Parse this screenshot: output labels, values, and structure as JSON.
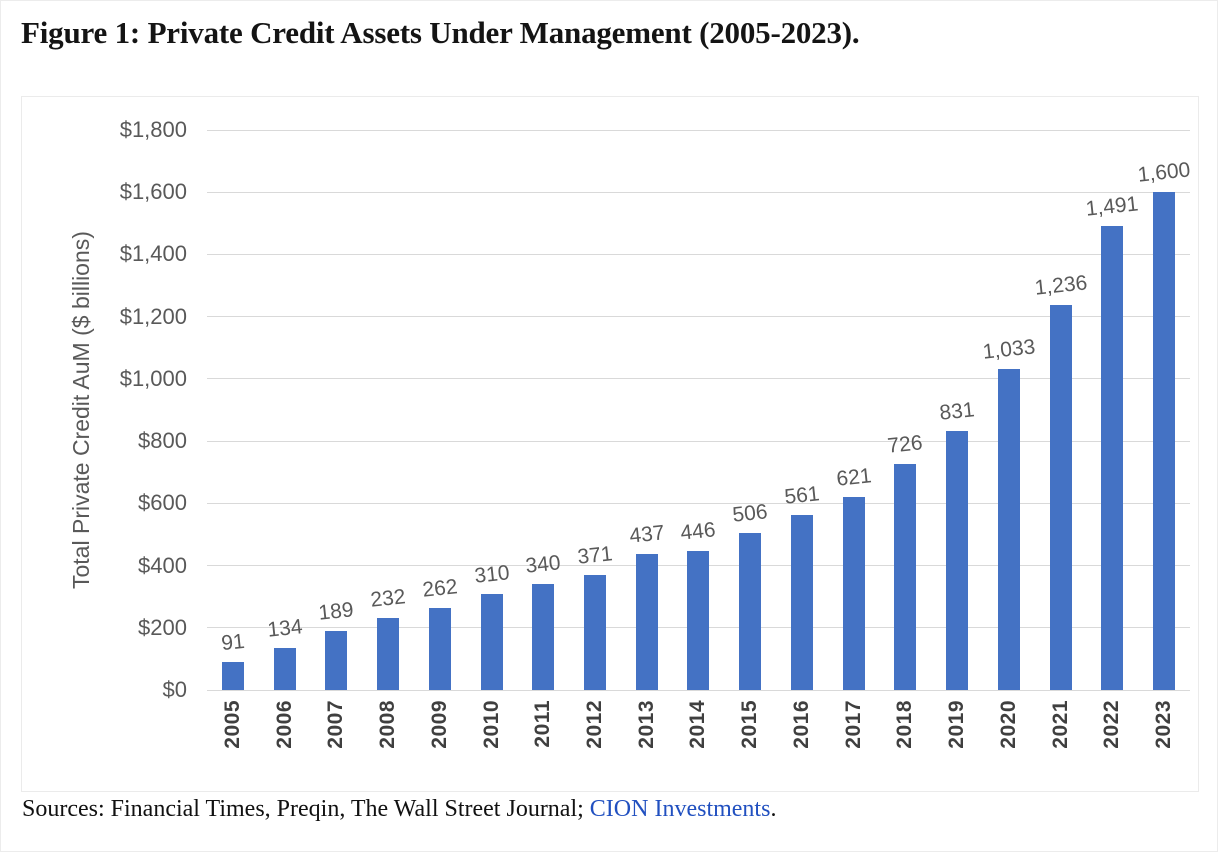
{
  "page": {
    "title": "Figure 1: Private Credit Assets Under Management (2005-2023).",
    "source": {
      "prefix": "Sources: Financial Times, Preqin, The Wall Street Journal; ",
      "link_text": "CION Investments",
      "suffix": "."
    }
  },
  "chart_data": {
    "type": "bar",
    "title": "Figure 1: Private Credit Assets Under Management (2005-2023).",
    "categories": [
      "2005",
      "2006",
      "2007",
      "2008",
      "2009",
      "2010",
      "2011",
      "2012",
      "2013",
      "2014",
      "2015",
      "2016",
      "2017",
      "2018",
      "2019",
      "2020",
      "2021",
      "2022",
      "2023"
    ],
    "values": [
      91,
      134,
      189,
      232,
      262,
      310,
      340,
      371,
      437,
      446,
      506,
      561,
      621,
      726,
      831,
      1033,
      1236,
      1491,
      1600
    ],
    "value_labels": [
      "91",
      "134",
      "189",
      "232",
      "262",
      "310",
      "340",
      "371",
      "437",
      "446",
      "506",
      "561",
      "621",
      "726",
      "831",
      "1,033",
      "1,236",
      "1,491",
      "1,600"
    ],
    "xlabel": "",
    "ylabel": "Total Private Credit AuM ($ billions)",
    "ylim": [
      0,
      1800
    ],
    "ytick_interval": 200,
    "ytick_labels": [
      "$0",
      "$200",
      "$400",
      "$600",
      "$800",
      "$1,000",
      "$1,200",
      "$1,400",
      "$1,600",
      "$1,800"
    ],
    "grid": true,
    "legend": "none",
    "colors": {
      "bar": "#4472C4",
      "data_label": "#595959",
      "axis_label": "#595959",
      "year_label": "#3f3f3f",
      "gridline": "#d9d9d9",
      "link": "#2150c0"
    }
  }
}
